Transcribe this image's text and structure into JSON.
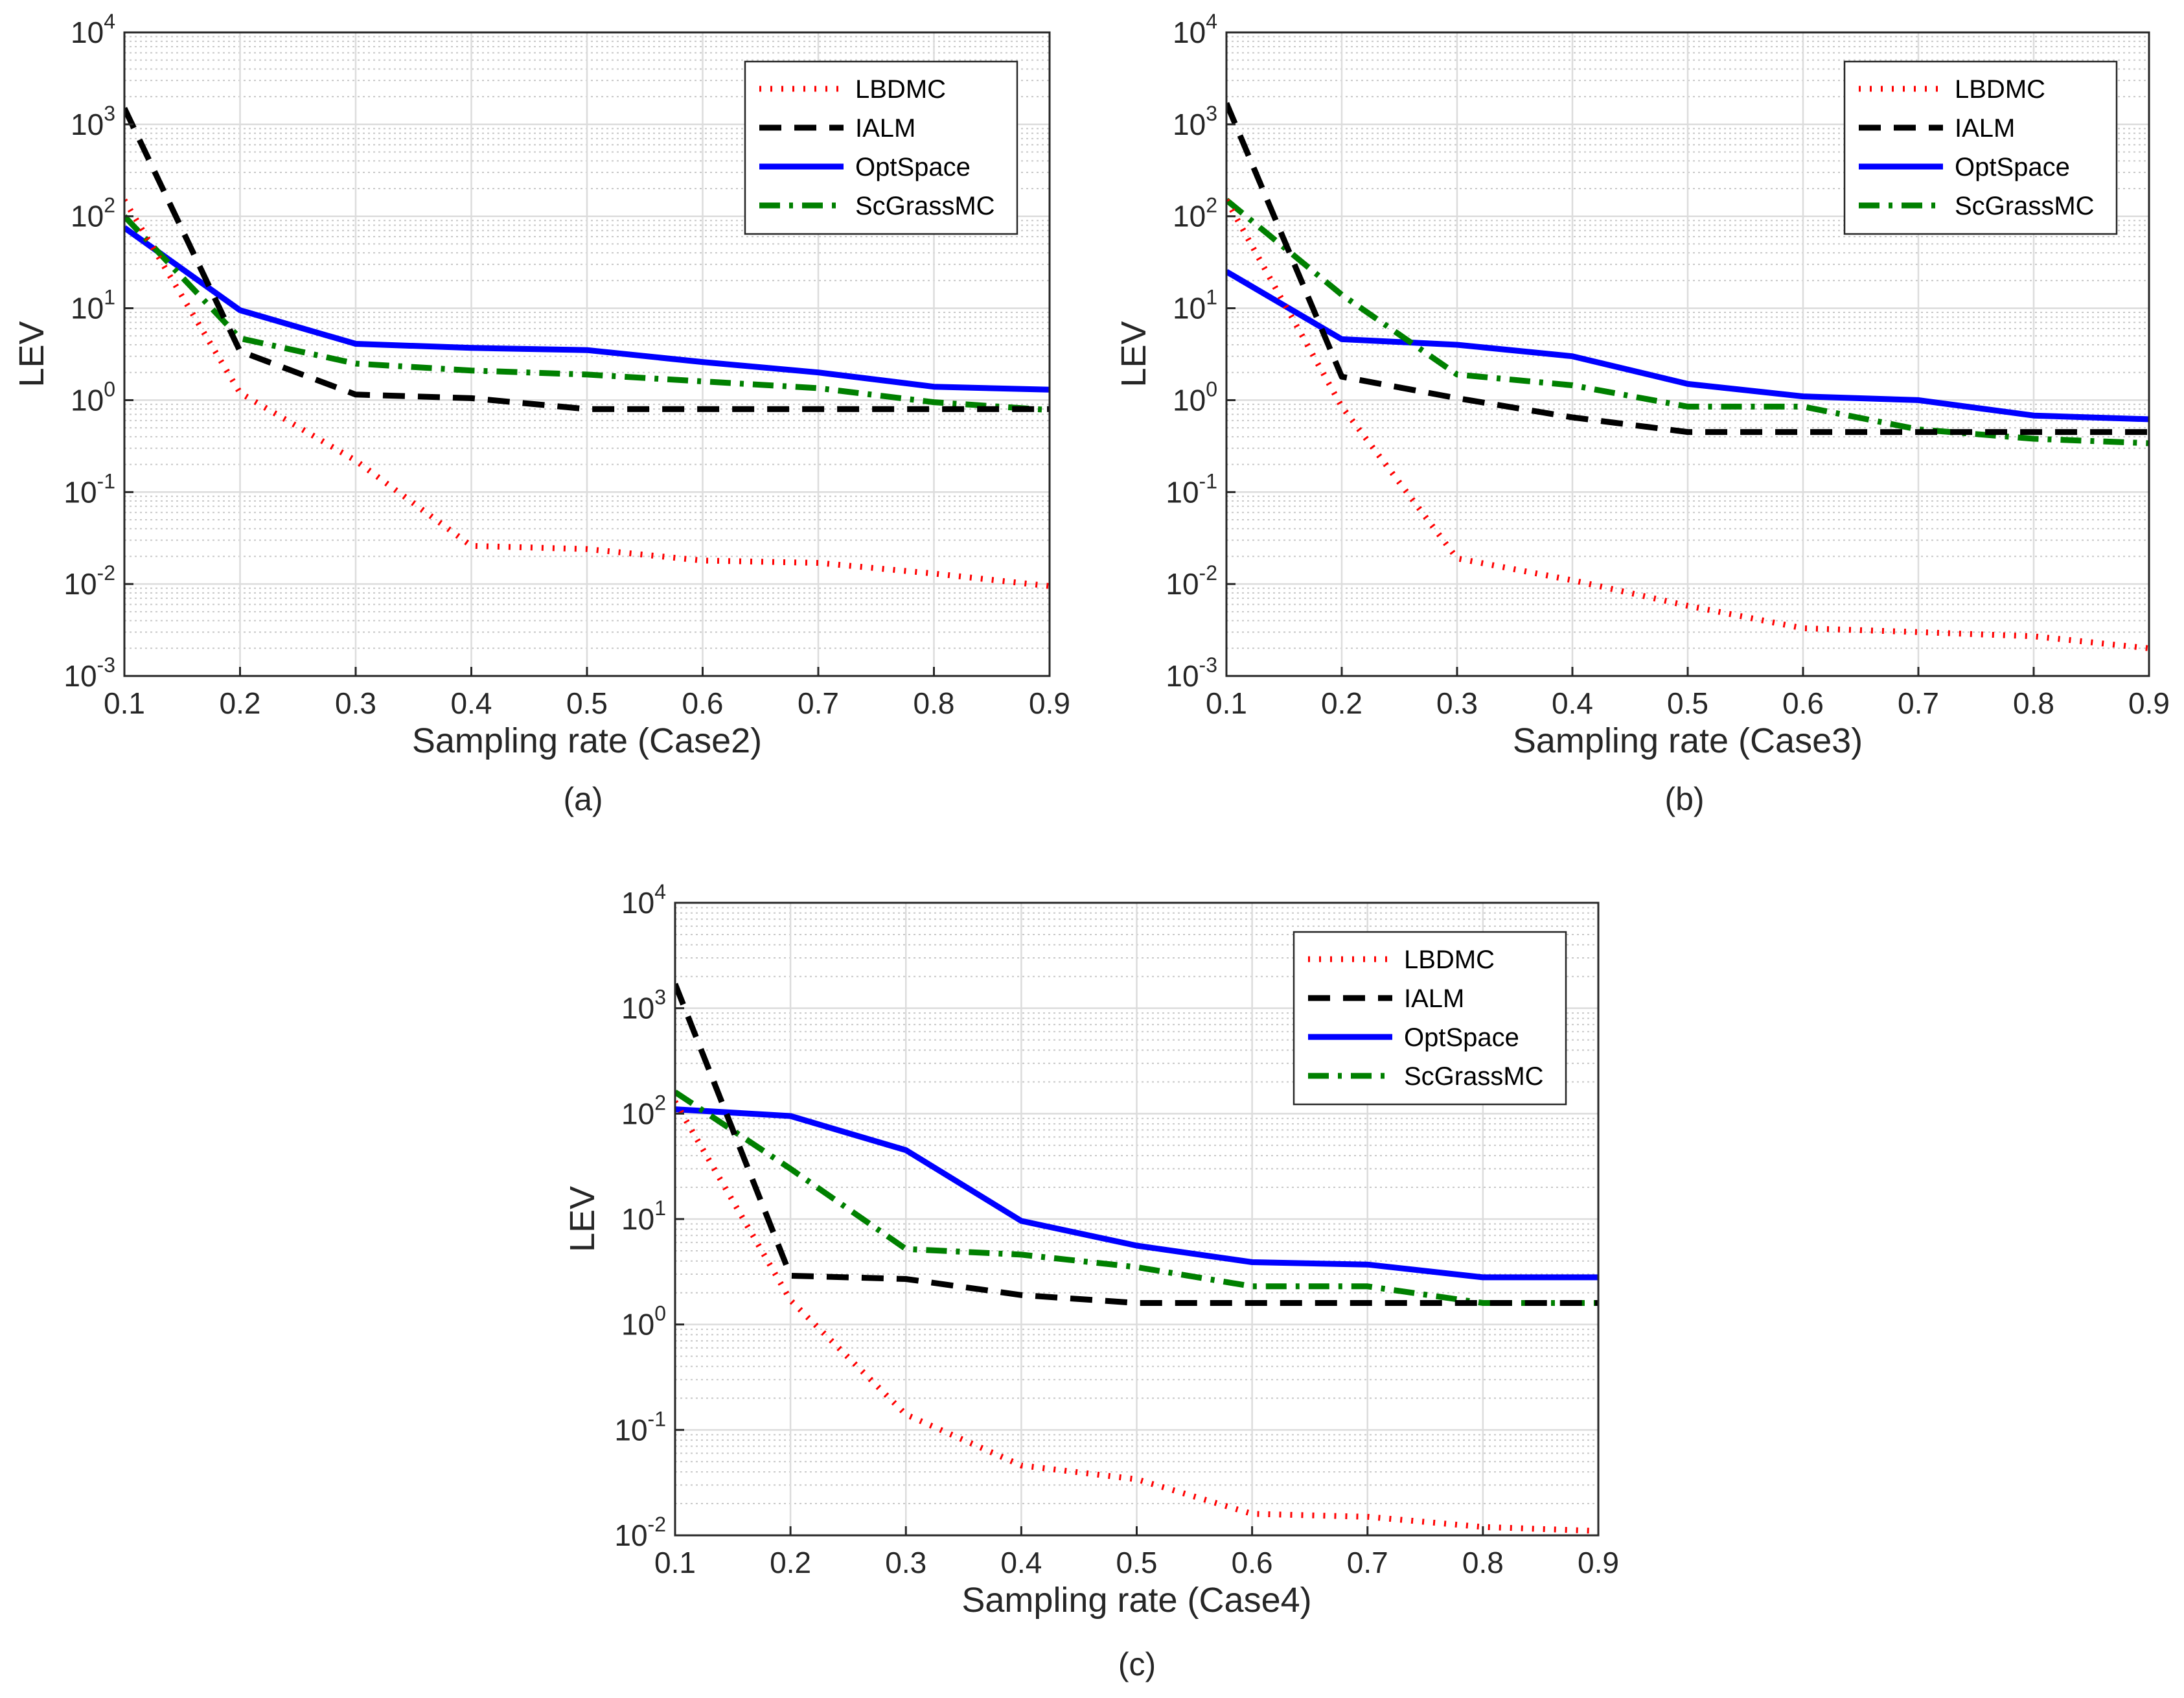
{
  "figure": {
    "captions": [
      "(a)",
      "(b)",
      "(c)"
    ]
  },
  "chart_data": [
    {
      "type": "line",
      "panel": "(a)",
      "xlabel": "Sampling rate (Case2)",
      "ylabel": "LEV",
      "yscale": "log",
      "xlim": [
        0.1,
        0.9
      ],
      "ylim_exp": [
        -3,
        4
      ],
      "grid": true,
      "legend_position": "top-right",
      "x": [
        0.1,
        0.2,
        0.3,
        0.4,
        0.5,
        0.6,
        0.7,
        0.8,
        0.9
      ],
      "xtick_labels": [
        "0.1",
        "0.2",
        "0.3",
        "0.4",
        "0.5",
        "0.6",
        "0.7",
        "0.8",
        "0.9"
      ],
      "ytick_exponents": [
        -3,
        -2,
        -1,
        0,
        1,
        2,
        3,
        4
      ],
      "ytick_base": "10",
      "series": [
        {
          "name": "LBDMC",
          "color": "#ff0000",
          "style": "dotted",
          "values": [
            150,
            1.2,
            0.22,
            0.026,
            0.024,
            0.018,
            0.017,
            0.013,
            0.0095
          ]
        },
        {
          "name": "IALM",
          "color": "#000000",
          "style": "dashed",
          "values": [
            1500,
            3.4,
            1.15,
            1.05,
            0.8,
            0.8,
            0.8,
            0.8,
            0.8
          ]
        },
        {
          "name": "OptSpace",
          "color": "#0000ff",
          "style": "solid",
          "values": [
            75,
            9.5,
            4.1,
            3.7,
            3.5,
            2.6,
            2.0,
            1.4,
            1.3
          ]
        },
        {
          "name": "ScGrassMC",
          "color": "#008000",
          "style": "dashdot",
          "values": [
            100,
            4.7,
            2.5,
            2.1,
            1.9,
            1.6,
            1.35,
            0.95,
            0.78
          ]
        }
      ]
    },
    {
      "type": "line",
      "panel": "(b)",
      "xlabel": "Sampling rate (Case3)",
      "ylabel": "LEV",
      "yscale": "log",
      "xlim": [
        0.1,
        0.9
      ],
      "ylim_exp": [
        -3,
        4
      ],
      "grid": true,
      "legend_position": "top-right",
      "x": [
        0.1,
        0.2,
        0.3,
        0.4,
        0.5,
        0.6,
        0.7,
        0.8,
        0.9
      ],
      "xtick_labels": [
        "0.1",
        "0.2",
        "0.3",
        "0.4",
        "0.5",
        "0.6",
        "0.7",
        "0.8",
        "0.9"
      ],
      "ytick_exponents": [
        -3,
        -2,
        -1,
        0,
        1,
        2,
        3,
        4
      ],
      "ytick_base": "10",
      "series": [
        {
          "name": "LBDMC",
          "color": "#ff0000",
          "style": "dotted",
          "values": [
            150,
            0.85,
            0.019,
            0.011,
            0.0058,
            0.0033,
            0.003,
            0.0027,
            0.002
          ]
        },
        {
          "name": "IALM",
          "color": "#000000",
          "style": "dashed",
          "values": [
            1700,
            1.8,
            1.05,
            0.65,
            0.45,
            0.45,
            0.45,
            0.45,
            0.45
          ]
        },
        {
          "name": "OptSpace",
          "color": "#0000ff",
          "style": "solid",
          "values": [
            25,
            4.6,
            4.0,
            3.0,
            1.5,
            1.1,
            1.0,
            0.68,
            0.62
          ]
        },
        {
          "name": "ScGrassMC",
          "color": "#008000",
          "style": "dashdot",
          "values": [
            150,
            14,
            1.9,
            1.45,
            0.85,
            0.85,
            0.48,
            0.38,
            0.34
          ]
        }
      ]
    },
    {
      "type": "line",
      "panel": "(c)",
      "xlabel": "Sampling rate (Case4)",
      "ylabel": "LEV",
      "yscale": "log",
      "xlim": [
        0.1,
        0.9
      ],
      "ylim_exp": [
        -2,
        4
      ],
      "grid": true,
      "legend_position": "top-right",
      "x": [
        0.1,
        0.2,
        0.3,
        0.4,
        0.5,
        0.6,
        0.7,
        0.8,
        0.9
      ],
      "xtick_labels": [
        "0.1",
        "0.2",
        "0.3",
        "0.4",
        "0.5",
        "0.6",
        "0.7",
        "0.8",
        "0.9"
      ],
      "ytick_exponents": [
        -2,
        -1,
        0,
        1,
        2,
        3,
        4
      ],
      "ytick_base": "10",
      "series": [
        {
          "name": "LBDMC",
          "color": "#ff0000",
          "style": "dotted",
          "values": [
            130,
            1.7,
            0.14,
            0.046,
            0.034,
            0.016,
            0.015,
            0.012,
            0.011
          ]
        },
        {
          "name": "IALM",
          "color": "#000000",
          "style": "dashed",
          "values": [
            1700,
            2.9,
            2.7,
            1.9,
            1.6,
            1.6,
            1.6,
            1.6,
            1.6
          ]
        },
        {
          "name": "OptSpace",
          "color": "#0000ff",
          "style": "solid",
          "values": [
            110,
            95,
            45,
            9.6,
            5.6,
            3.9,
            3.7,
            2.8,
            2.8
          ]
        },
        {
          "name": "ScGrassMC",
          "color": "#008000",
          "style": "dashdot",
          "values": [
            160,
            30,
            5.2,
            4.6,
            3.5,
            2.3,
            2.3,
            1.6,
            1.6
          ]
        }
      ]
    }
  ]
}
